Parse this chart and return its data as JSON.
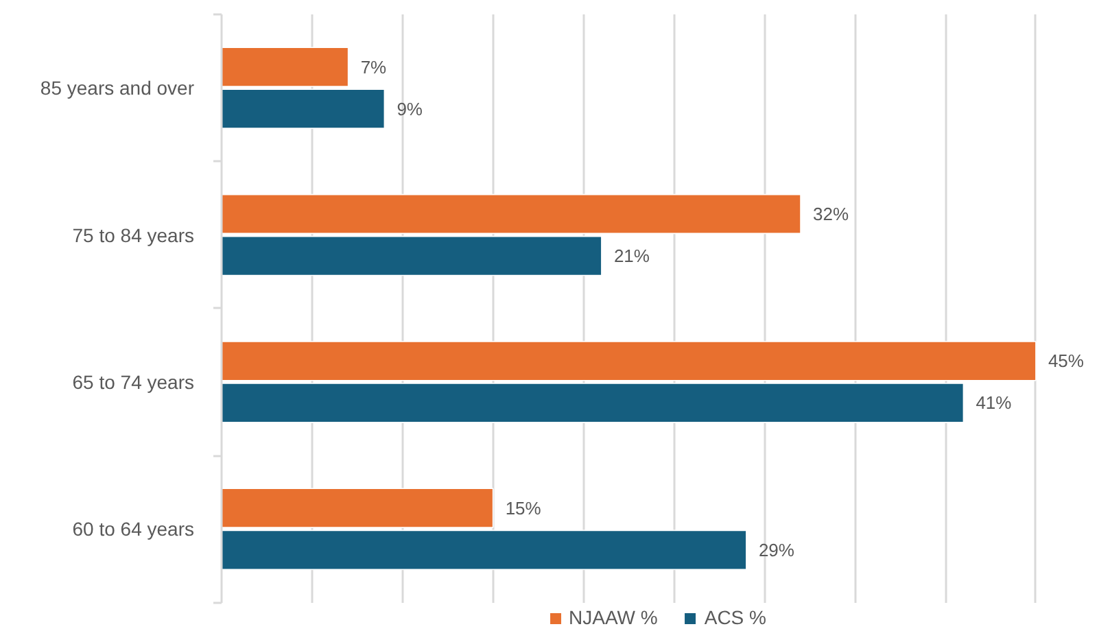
{
  "chart_data": {
    "type": "bar",
    "orientation": "horizontal",
    "categories": [
      "85 years and over",
      "75 to 84 years",
      "65 to 74 years",
      "60 to 64 years"
    ],
    "series": [
      {
        "name": "NJAAW %",
        "color": "#e8702f",
        "values": [
          7,
          32,
          45,
          15
        ],
        "value_labels": [
          "7%",
          "32%",
          "45%",
          "15%"
        ]
      },
      {
        "name": "ACS %",
        "color": "#155e7f",
        "values": [
          9,
          21,
          41,
          29
        ],
        "value_labels": [
          "9%",
          "21%",
          "41%",
          "29%"
        ]
      }
    ],
    "xticks": [
      {
        "value": 0,
        "label": null
      },
      {
        "value": 5,
        "label": null
      },
      {
        "value": 10,
        "label": null
      },
      {
        "value": 15,
        "label": null
      },
      {
        "value": 20,
        "label": null
      },
      {
        "value": 25,
        "label": null
      },
      {
        "value": 30,
        "label": null
      },
      {
        "value": 35,
        "label": null
      },
      {
        "value": 40,
        "label": null
      },
      {
        "value": 45,
        "label": null
      }
    ],
    "tick_labels": "y",
    "grid": "x",
    "legend": "bottom"
  }
}
